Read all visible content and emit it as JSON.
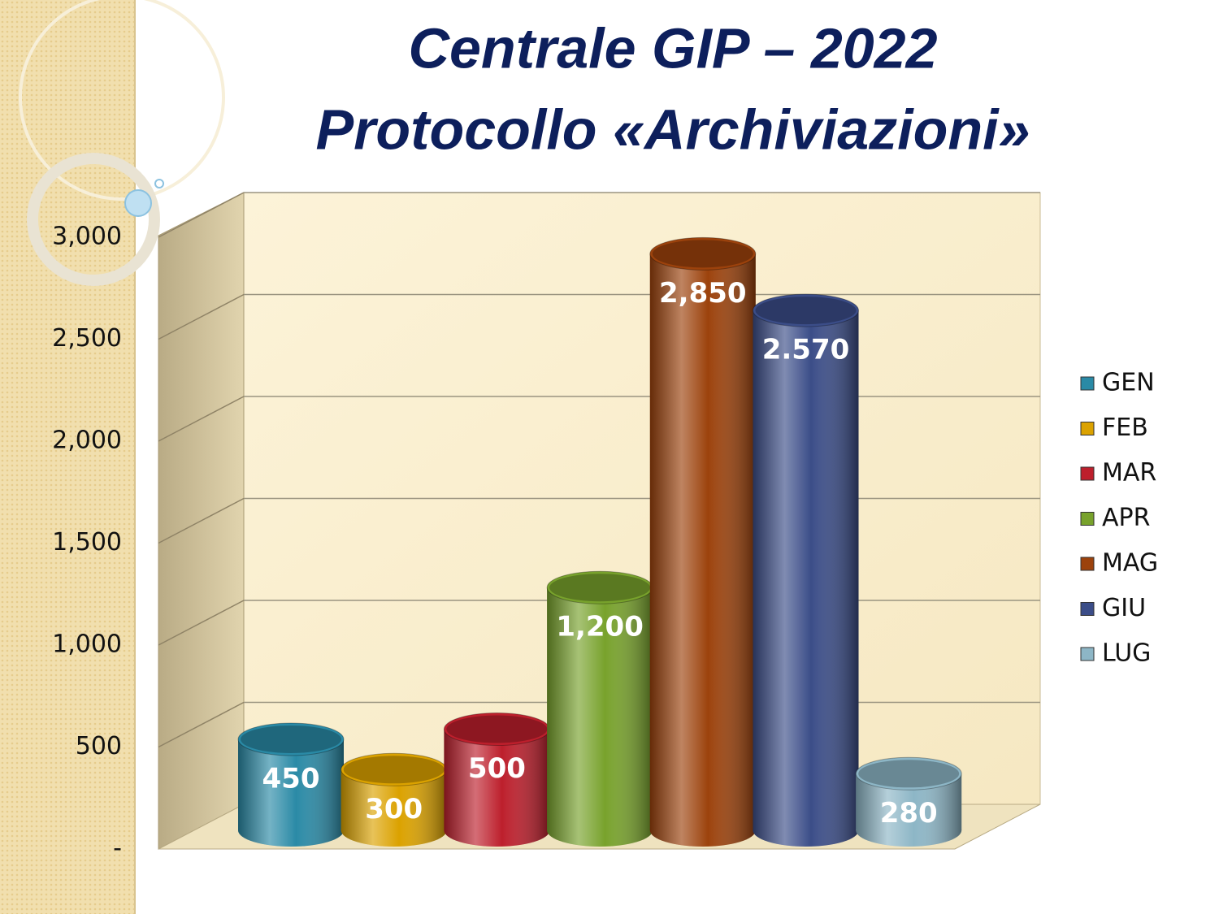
{
  "chart_data": {
    "type": "bar3d",
    "title": "Centrale GIP – 2022",
    "subtitle": "Protocollo «Archiviazioni»",
    "ylim": [
      0,
      3000
    ],
    "yticks": [
      {
        "value": 0,
        "label": "-"
      },
      500,
      {
        "value": 1000,
        "label": "1,000"
      },
      {
        "value": 1500,
        "label": "1,500"
      },
      {
        "value": 2000,
        "label": "2,000"
      },
      {
        "value": 2500,
        "label": "2,500"
      },
      {
        "value": 3000,
        "label": "3,000"
      }
    ],
    "grid": true,
    "legend": "right",
    "series": [
      {
        "name": "GEN",
        "color": "#2a8aa6",
        "values": [
          450
        ]
      },
      {
        "name": "FEB",
        "color": "#dba200",
        "values": [
          300
        ]
      },
      {
        "name": "MAR",
        "color": "#bd1f2c",
        "values": [
          500
        ]
      },
      {
        "name": "APR",
        "color": "#78a22c",
        "values": [
          1200
        ],
        "value_labels": [
          "1,200"
        ]
      },
      {
        "name": "MAG",
        "color": "#9c420c",
        "values": [
          2850
        ],
        "value_labels": [
          "2,850"
        ]
      },
      {
        "name": "GIU",
        "color": "#3b4d88",
        "values": [
          2570
        ],
        "value_labels": [
          "2.570"
        ]
      },
      {
        "name": "LUG",
        "color": "#8db6c6",
        "values": [
          280
        ]
      }
    ]
  }
}
